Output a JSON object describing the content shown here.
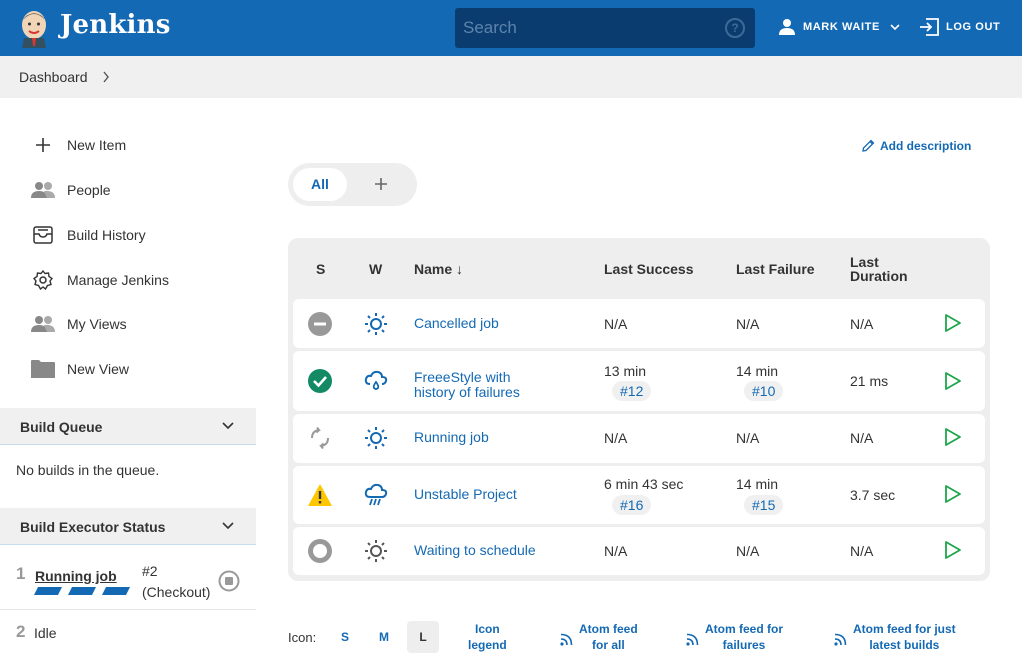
{
  "header": {
    "brand": "Jenkins",
    "search_placeholder": "Search",
    "help_symbol": "?",
    "user_name": "MARK WAITE",
    "logout_label": "LOG OUT",
    "bg_color": "#1469b4"
  },
  "breadcrumb": {
    "item": "Dashboard"
  },
  "sidebar": {
    "tasks": [
      {
        "label": "New Item",
        "icon": "plus-icon"
      },
      {
        "label": "People",
        "icon": "people-icon"
      },
      {
        "label": "Build History",
        "icon": "build-history-icon"
      },
      {
        "label": "Manage Jenkins",
        "icon": "gear-icon"
      },
      {
        "label": "My Views",
        "icon": "people-icon"
      },
      {
        "label": "New View",
        "icon": "folder-icon"
      }
    ],
    "build_queue": {
      "title": "Build Queue",
      "empty_text": "No builds in the queue."
    },
    "executors": {
      "title": "Build Executor Status",
      "items": [
        {
          "num": "1",
          "job": "Running job",
          "build": "#2",
          "stage": "(Checkout)"
        },
        {
          "num": "2",
          "status": "Idle"
        }
      ]
    }
  },
  "view_tabs": {
    "all": "All",
    "add": "+"
  },
  "add_description": "Add description",
  "table": {
    "headers": {
      "s": "S",
      "w": "W",
      "name": "Name",
      "sort_arrow": "↓",
      "last_success": "Last Success",
      "last_failure": "Last Failure",
      "last_duration_1": "Last",
      "last_duration_2": "Duration"
    },
    "rows": [
      {
        "status": "aborted",
        "weather": "sunny",
        "name_1": "Cancelled job",
        "name_2": "",
        "success": "N/A",
        "success_build": "",
        "failure": "N/A",
        "failure_build": "",
        "duration": "N/A"
      },
      {
        "status": "success",
        "weather": "rain",
        "name_1": "FreeeStyle with",
        "name_2": "history of failures",
        "success": "13 min",
        "success_build": "#12",
        "failure": "14 min",
        "failure_build": "#10",
        "duration": "21 ms"
      },
      {
        "status": "running",
        "weather": "sunny",
        "name_1": "Running job",
        "name_2": "",
        "success": "N/A",
        "success_build": "",
        "failure": "N/A",
        "failure_build": "",
        "duration": "N/A"
      },
      {
        "status": "unstable",
        "weather": "storm",
        "name_1": "Unstable Project",
        "name_2": "",
        "success": "6 min 43 sec",
        "success_build": "#16",
        "failure": "14 min",
        "failure_build": "#15",
        "duration": "3.7 sec"
      },
      {
        "status": "notbuilt",
        "weather": "sunny",
        "name_1": "Waiting to schedule",
        "name_2": "",
        "success": "N/A",
        "success_build": "",
        "failure": "N/A",
        "failure_build": "",
        "duration": "N/A"
      }
    ]
  },
  "footer": {
    "icon_label": "Icon:",
    "sizes": [
      "S",
      "M",
      "L"
    ],
    "active_size": "L",
    "legend_1": "Icon",
    "legend_2": "legend",
    "feed_all_1": "Atom feed",
    "feed_all_2": "for all",
    "feed_fail_1": "Atom feed for",
    "feed_fail_2": "failures",
    "feed_latest_1": "Atom feed for just",
    "feed_latest_2": "latest builds"
  }
}
